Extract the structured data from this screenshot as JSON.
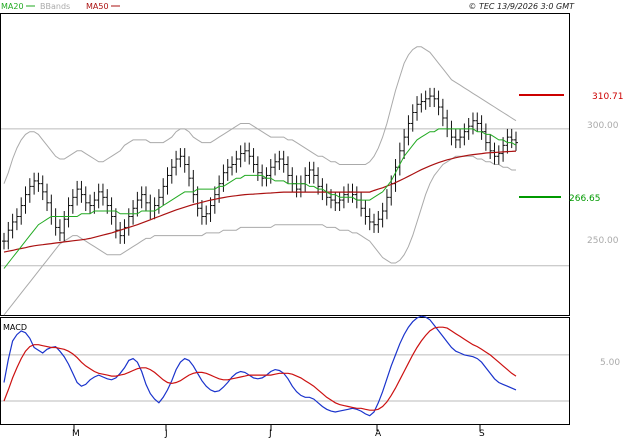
{
  "header": {
    "legend": [
      {
        "label": "MA20",
        "color": "#22aa22"
      },
      {
        "label": "BBands",
        "color": "#aaaaaa"
      },
      {
        "label": "MA50",
        "color": "#aa1111"
      }
    ],
    "copyright": "© TEC 13/9/2026 3:0 GMT"
  },
  "colors": {
    "bars": "#111111",
    "ma20": "#22aa22",
    "ma50": "#aa1111",
    "bbands": "#aaaaaa",
    "macd": "#1a33cc",
    "signal": "#cc1111",
    "grid": "#bbbbbb"
  },
  "price_labels": {
    "upper": "300.00",
    "lower": "250.00"
  },
  "targets": {
    "resistance": {
      "value": "310.71",
      "color": "#cc0000"
    },
    "support": {
      "value": "266.65",
      "color": "#009900"
    }
  },
  "macd_panel": {
    "title": "MACD",
    "tick": "5.00"
  },
  "x_labels": [
    "M",
    "J",
    "J",
    "A",
    "S"
  ],
  "chart_data": {
    "type": "line",
    "title": "",
    "price": {
      "ylim": [
        232,
        342
      ],
      "yticks": [
        250,
        300
      ],
      "closes": [
        259,
        263,
        266,
        268,
        272,
        276,
        279,
        281,
        280,
        277,
        273,
        268,
        264,
        262,
        267,
        272,
        275,
        278,
        276,
        273,
        272,
        274,
        277,
        275,
        272,
        268,
        263,
        261,
        264,
        268,
        271,
        274,
        276,
        273,
        270,
        272,
        275,
        279,
        283,
        286,
        289,
        290,
        287,
        282,
        276,
        271,
        268,
        269,
        272,
        276,
        280,
        284,
        286,
        287,
        289,
        291,
        292,
        290,
        287,
        284,
        282,
        283,
        286,
        288,
        289,
        287,
        283,
        280,
        278,
        280,
        283,
        285,
        283,
        279,
        277,
        275,
        274,
        273,
        274,
        276,
        277,
        276,
        274,
        271,
        268,
        266,
        265,
        267,
        270,
        275,
        280,
        286,
        292,
        297,
        302,
        306,
        309,
        310,
        311,
        312,
        311,
        308,
        304,
        300,
        297,
        296,
        297,
        299,
        301,
        303,
        302,
        299,
        295,
        292,
        290,
        291,
        294,
        297,
        296,
        295
      ],
      "ma20": [
        249,
        251,
        253,
        255,
        257,
        259,
        261,
        263,
        265,
        266,
        267,
        268,
        268,
        268,
        268,
        268,
        268,
        268,
        269,
        269,
        269,
        270,
        270,
        270,
        270,
        270,
        270,
        269,
        269,
        269,
        269,
        269,
        270,
        270,
        270,
        270,
        271,
        272,
        273,
        274,
        275,
        276,
        277,
        277,
        277,
        278,
        278,
        278,
        278,
        278,
        279,
        279,
        280,
        281,
        282,
        282,
        283,
        283,
        283,
        283,
        283,
        282,
        282,
        281,
        281,
        281,
        280,
        280,
        280,
        280,
        280,
        279,
        279,
        278,
        278,
        277,
        276,
        276,
        275,
        275,
        275,
        275,
        274,
        274,
        274,
        274,
        275,
        276,
        277,
        279,
        281,
        284,
        287,
        290,
        292,
        294,
        296,
        297,
        298,
        299,
        299,
        300,
        300,
        300,
        300,
        300,
        300,
        300,
        300,
        300,
        299,
        299,
        298,
        298,
        297,
        296,
        296,
        295,
        295,
        294
      ],
      "ma50": [
        255,
        255.3,
        255.6,
        256,
        256.3,
        256.6,
        257,
        257.3,
        257.5,
        257.7,
        257.9,
        258.1,
        258.3,
        258.5,
        258.7,
        258.9,
        259.1,
        259.3,
        259.5,
        259.7,
        260,
        260.4,
        260.8,
        261.2,
        261.6,
        262,
        262.5,
        263,
        263.5,
        264,
        264.5,
        265,
        265.6,
        266.2,
        266.8,
        267.4,
        268,
        268.6,
        269.2,
        269.8,
        270.4,
        270.9,
        271.4,
        271.9,
        272.4,
        272.8,
        273.2,
        273.6,
        274,
        274.3,
        274.6,
        274.9,
        275.2,
        275.4,
        275.6,
        275.8,
        276,
        276.1,
        276.2,
        276.3,
        276.4,
        276.5,
        276.6,
        276.7,
        276.8,
        276.9,
        276.9,
        276.9,
        276.9,
        276.9,
        276.9,
        276.9,
        276.9,
        276.9,
        276.9,
        276.9,
        276.9,
        276.9,
        276.9,
        276.9,
        276.9,
        276.9,
        276.9,
        276.9,
        276.9,
        276.9,
        277.5,
        278,
        278.5,
        279.1,
        279.7,
        280.4,
        281.1,
        281.9,
        282.7,
        283.5,
        284.3,
        285.1,
        285.8,
        286.5,
        287.1,
        287.7,
        288.2,
        288.7,
        289.1,
        289.5,
        289.8,
        290.1,
        290.4,
        290.6,
        290.8,
        291,
        291.2,
        291.3,
        291.4,
        291.5,
        291.6,
        291.7,
        291.8,
        291.9
      ],
      "bb_upper": [
        280,
        284,
        289,
        293,
        296,
        298,
        299,
        299,
        298,
        296,
        294,
        292,
        290,
        289,
        289,
        290,
        291,
        292,
        292,
        291,
        290,
        289,
        288,
        288,
        289,
        290,
        291,
        292,
        294,
        295,
        296,
        296,
        296,
        296,
        295,
        295,
        295,
        295,
        296,
        297,
        299,
        300,
        300,
        299,
        297,
        296,
        295,
        295,
        295,
        296,
        297,
        298,
        299,
        300,
        301,
        302,
        302,
        302,
        301,
        300,
        299,
        298,
        297,
        297,
        297,
        297,
        296,
        296,
        295,
        294,
        293,
        292,
        291,
        290,
        290,
        289,
        288,
        288,
        287,
        287,
        287,
        287,
        287,
        287,
        287,
        288,
        290,
        293,
        297,
        302,
        308,
        314,
        319,
        324,
        327,
        329,
        330,
        330,
        329,
        328,
        326,
        324,
        322,
        320,
        318,
        317,
        316,
        315,
        314,
        313,
        312,
        311,
        310,
        309,
        308,
        307,
        306,
        305,
        304,
        303
      ],
      "bb_lower": [
        232,
        234,
        236,
        238,
        240,
        242,
        244,
        246,
        248,
        250,
        252,
        254,
        256,
        258,
        259,
        260,
        261,
        261,
        260,
        259,
        258,
        257,
        256,
        255,
        254,
        254,
        254,
        254,
        255,
        256,
        257,
        258,
        259,
        260,
        260,
        261,
        261,
        261,
        261,
        261,
        261,
        261,
        261,
        261,
        261,
        261,
        261,
        262,
        262,
        262,
        262,
        263,
        263,
        263,
        263,
        264,
        264,
        264,
        264,
        264,
        264,
        264,
        264,
        265,
        265,
        265,
        265,
        265,
        265,
        265,
        265,
        265,
        265,
        265,
        265,
        264,
        264,
        264,
        263,
        263,
        263,
        262,
        262,
        261,
        260,
        259,
        257,
        255,
        253,
        252,
        251,
        251,
        252,
        254,
        257,
        261,
        266,
        271,
        276,
        280,
        283,
        285,
        287,
        288,
        289,
        290,
        290,
        290,
        290,
        290,
        289,
        289,
        288,
        288,
        287,
        287,
        286,
        286,
        285,
        285
      ]
    },
    "macd": {
      "ylim": [
        -2.5,
        9
      ],
      "yticks": [
        5
      ],
      "macd": [
        2,
        4.5,
        6.5,
        7.2,
        7.6,
        7.4,
        6.8,
        5.8,
        5.5,
        5.2,
        5.6,
        5.8,
        5.9,
        5.4,
        4.8,
        4.0,
        3.0,
        2.0,
        1.6,
        1.8,
        2.3,
        2.6,
        2.8,
        2.6,
        2.4,
        2.3,
        2.5,
        3.0,
        3.6,
        4.4,
        4.6,
        4.2,
        3.2,
        1.8,
        0.8,
        0.2,
        -0.2,
        0.4,
        1.2,
        2.2,
        3.4,
        4.2,
        4.6,
        4.4,
        3.8,
        3.0,
        2.2,
        1.6,
        1.2,
        1.0,
        1.1,
        1.5,
        2.0,
        2.6,
        3.0,
        3.2,
        3.1,
        2.8,
        2.5,
        2.4,
        2.5,
        2.8,
        3.2,
        3.4,
        3.3,
        3.0,
        2.4,
        1.6,
        1.0,
        0.6,
        0.4,
        0.4,
        0.2,
        -0.2,
        -0.6,
        -0.9,
        -1.1,
        -1.2,
        -1.1,
        -1.0,
        -0.9,
        -0.8,
        -0.9,
        -1.1,
        -1.4,
        -1.6,
        -1.2,
        -0.2,
        1.0,
        2.4,
        3.8,
        5.0,
        6.2,
        7.2,
        8.0,
        8.6,
        9.0,
        9.2,
        9.1,
        8.8,
        8.2,
        7.6,
        7.0,
        6.4,
        5.8,
        5.4,
        5.2,
        5.0,
        4.9,
        4.8,
        4.6,
        4.2,
        3.6,
        3.0,
        2.4,
        2.0,
        1.8,
        1.6,
        1.4,
        1.2
      ],
      "signal": [
        0,
        1.2,
        2.5,
        3.6,
        4.6,
        5.4,
        5.9,
        6.1,
        6.1,
        6.0,
        5.9,
        5.8,
        5.8,
        5.7,
        5.6,
        5.4,
        5.1,
        4.7,
        4.2,
        3.8,
        3.5,
        3.2,
        3.0,
        2.9,
        2.8,
        2.7,
        2.7,
        2.8,
        2.9,
        3.1,
        3.3,
        3.5,
        3.6,
        3.6,
        3.4,
        3.1,
        2.7,
        2.3,
        2.0,
        1.9,
        2.0,
        2.2,
        2.5,
        2.8,
        3.0,
        3.1,
        3.1,
        3.0,
        2.8,
        2.6,
        2.4,
        2.3,
        2.3,
        2.4,
        2.5,
        2.6,
        2.7,
        2.8,
        2.8,
        2.8,
        2.8,
        2.8,
        2.8,
        2.9,
        3.0,
        3.0,
        3.0,
        2.9,
        2.7,
        2.5,
        2.2,
        1.9,
        1.6,
        1.2,
        0.8,
        0.4,
        0.1,
        -0.2,
        -0.4,
        -0.5,
        -0.6,
        -0.7,
        -0.8,
        -0.8,
        -0.9,
        -1.0,
        -1.0,
        -0.9,
        -0.6,
        -0.1,
        0.6,
        1.4,
        2.3,
        3.2,
        4.1,
        5.0,
        5.8,
        6.5,
        7.1,
        7.6,
        7.9,
        8.0,
        8.0,
        7.9,
        7.6,
        7.3,
        7.0,
        6.7,
        6.4,
        6.1,
        5.9,
        5.6,
        5.3,
        5.0,
        4.6,
        4.2,
        3.8,
        3.4,
        3.0,
        2.7
      ]
    }
  }
}
